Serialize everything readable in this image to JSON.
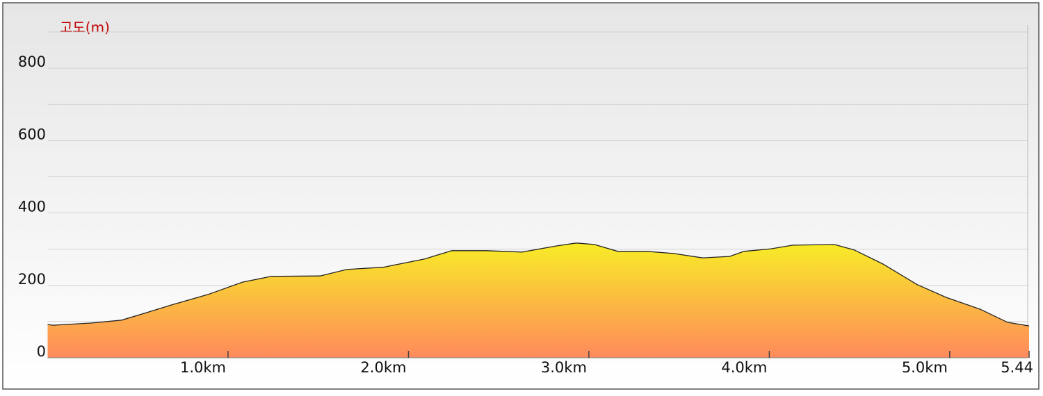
{
  "chart_data": {
    "type": "area",
    "ylabel": "고도(m)",
    "x": [
      0,
      0.03,
      0.24,
      0.41,
      0.55,
      0.7,
      0.89,
      1.08,
      1.24,
      1.51,
      1.66,
      1.86,
      2.09,
      2.24,
      2.43,
      2.63,
      2.82,
      2.93,
      3.03,
      3.16,
      3.32,
      3.47,
      3.63,
      3.78,
      3.86,
      4.01,
      4.13,
      4.36,
      4.47,
      4.63,
      4.82,
      4.98,
      5.17,
      5.32,
      5.44
    ],
    "values": [
      92,
      90,
      96,
      104,
      125,
      148,
      175,
      209,
      225,
      226,
      244,
      250,
      273,
      296,
      296,
      292,
      309,
      317,
      313,
      294,
      294,
      288,
      276,
      280,
      294,
      301,
      311,
      313,
      298,
      259,
      202,
      167,
      134,
      98,
      88
    ],
    "xlim": [
      0,
      5.44
    ],
    "xticks": [
      {
        "value": 1,
        "label": "1.0km"
      },
      {
        "value": 2,
        "label": "2.0km"
      },
      {
        "value": 3,
        "label": "3.0km"
      },
      {
        "value": 4,
        "label": "4.0km"
      },
      {
        "value": 5,
        "label": "5.0km"
      },
      {
        "value": 5.44,
        "label": "5.44"
      }
    ],
    "ylim": [
      0,
      900
    ],
    "yticks": [
      0,
      200,
      400,
      600,
      800
    ],
    "yminorticks": [
      100,
      300,
      500,
      700,
      900
    ],
    "grid": true,
    "colors": [
      "#f8ec26",
      "#ff8a5c"
    ],
    "line_color": "#222222",
    "label_color": "#c00000"
  }
}
